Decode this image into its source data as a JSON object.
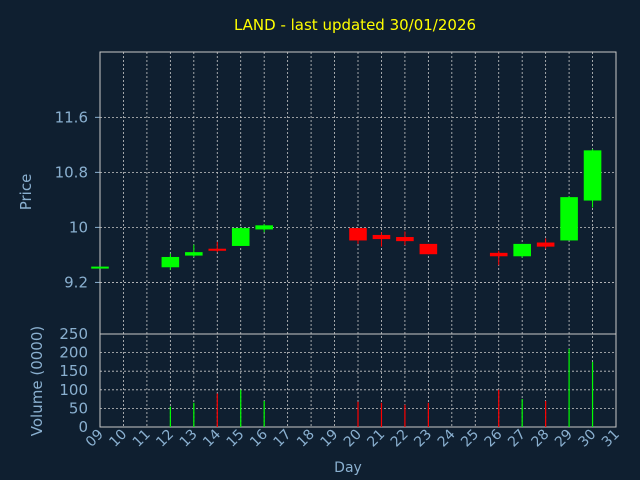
{
  "chart_data": {
    "type": "candlestick",
    "title": "LAND - last updated 30/01/2026",
    "xlabel": "Day",
    "price_ylabel": "Price",
    "volume_ylabel": "Volume (0000)",
    "x_ticks": [
      "09",
      "10",
      "11",
      "12",
      "13",
      "14",
      "15",
      "16",
      "17",
      "18",
      "19",
      "20",
      "21",
      "22",
      "23",
      "24",
      "25",
      "26",
      "27",
      "28",
      "29",
      "30",
      "31"
    ],
    "price_ticks": [
      "9.2",
      "10",
      "10.8",
      "11.6"
    ],
    "volume_ticks": [
      "0",
      "50",
      "100",
      "150",
      "200",
      "250"
    ],
    "price_ylim": [
      8.45,
      12.55
    ],
    "volume_ylim": [
      0,
      250
    ],
    "grid": true,
    "colors": {
      "background": "#0f1f30",
      "title": "#ffff00",
      "axis_label": "#8ab0d0",
      "grid": "#c8c8c8",
      "up": "#00ff00",
      "down": "#ff0000"
    },
    "candles": [
      {
        "day": "09",
        "open": 9.43,
        "high": 9.43,
        "low": 9.43,
        "close": 9.43,
        "volume": 0
      },
      {
        "day": "12",
        "open": 9.42,
        "high": 9.62,
        "low": 9.38,
        "close": 9.57,
        "volume": 55
      },
      {
        "day": "13",
        "open": 9.59,
        "high": 9.75,
        "low": 9.57,
        "close": 9.64,
        "volume": 65
      },
      {
        "day": "14",
        "open": 9.69,
        "high": 9.79,
        "low": 9.64,
        "close": 9.66,
        "volume": 90
      },
      {
        "day": "15",
        "open": 9.73,
        "high": 10.0,
        "low": 9.73,
        "close": 9.99,
        "volume": 100
      },
      {
        "day": "16",
        "open": 9.97,
        "high": 10.05,
        "low": 9.93,
        "close": 10.03,
        "volume": 70
      },
      {
        "day": "20",
        "open": 9.99,
        "high": 9.99,
        "low": 9.76,
        "close": 9.81,
        "volume": 68
      },
      {
        "day": "21",
        "open": 9.89,
        "high": 9.93,
        "low": 9.72,
        "close": 9.83,
        "volume": 65
      },
      {
        "day": "22",
        "open": 9.86,
        "high": 9.94,
        "low": 9.74,
        "close": 9.8,
        "volume": 60
      },
      {
        "day": "23",
        "open": 9.76,
        "high": 9.76,
        "low": 9.61,
        "close": 9.61,
        "volume": 65
      },
      {
        "day": "26",
        "open": 9.63,
        "high": 9.66,
        "low": 9.45,
        "close": 9.58,
        "volume": 100
      },
      {
        "day": "27",
        "open": 9.58,
        "high": 9.76,
        "low": 9.56,
        "close": 9.76,
        "volume": 75
      },
      {
        "day": "28",
        "open": 9.78,
        "high": 9.84,
        "low": 9.69,
        "close": 9.72,
        "volume": 70
      },
      {
        "day": "29",
        "open": 9.81,
        "high": 10.45,
        "low": 9.81,
        "close": 10.44,
        "volume": 210
      },
      {
        "day": "30",
        "open": 10.39,
        "high": 11.14,
        "low": 10.29,
        "close": 11.12,
        "volume": 175
      }
    ]
  }
}
